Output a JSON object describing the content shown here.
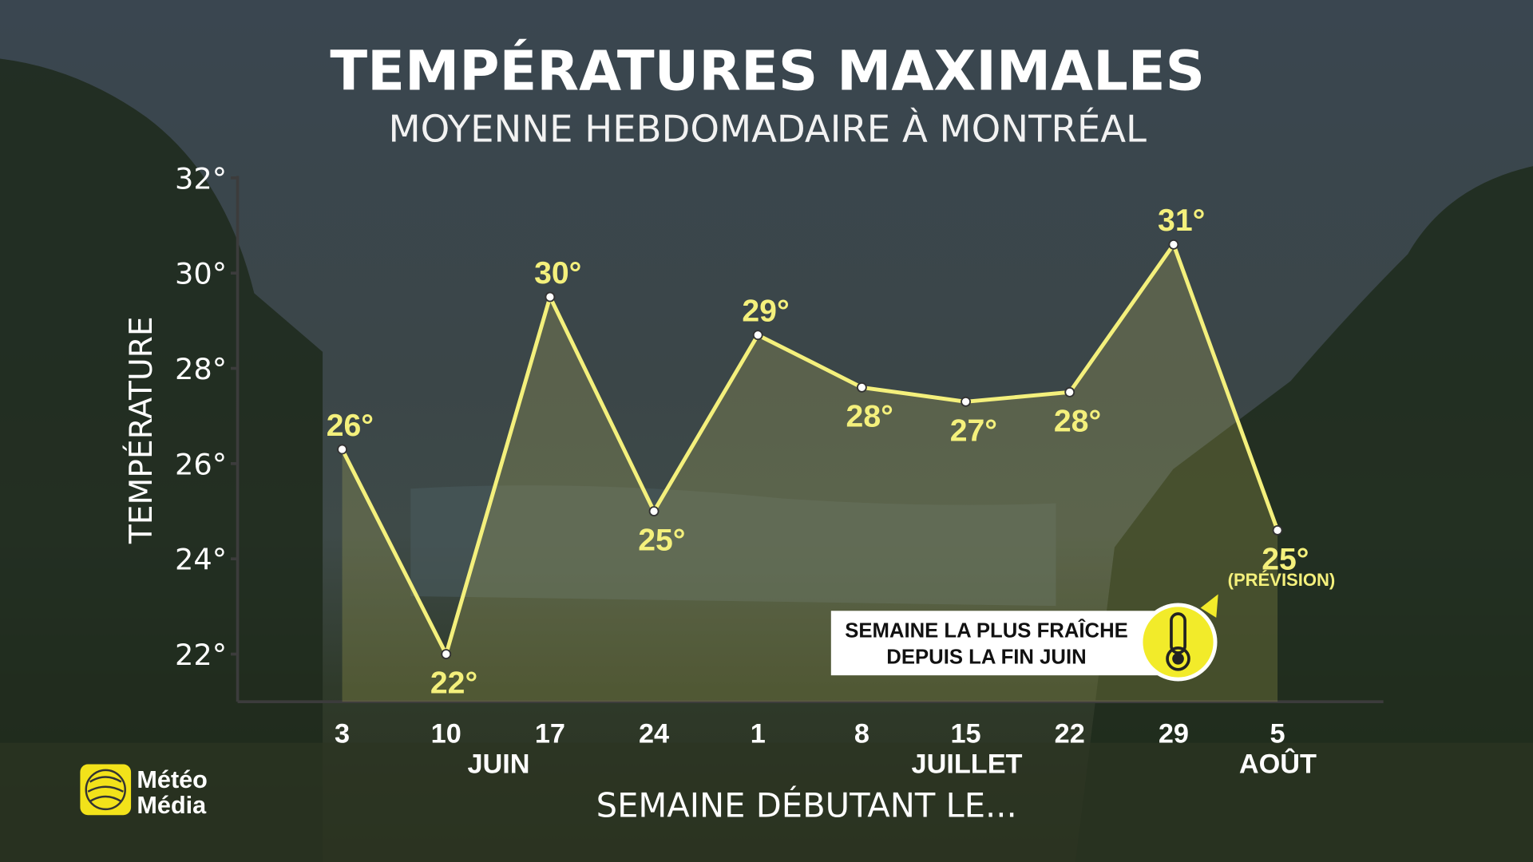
{
  "chart_data": {
    "type": "line",
    "title": "TEMPÉRATURES MAXIMALES",
    "subtitle": "MOYENNE HEBDOMADAIRE À MONTRÉAL",
    "y_label": "TEMPÉRATURE",
    "x_label": "SEMAINE DÉBUTANT LE...",
    "categories": [
      "3",
      "10",
      "17",
      "24",
      "1",
      "8",
      "15",
      "22",
      "29",
      "5"
    ],
    "months": [
      "JUIN",
      "JUILLET",
      "AOÛT"
    ],
    "values": [
      26.3,
      22.0,
      29.5,
      25.0,
      28.7,
      27.6,
      27.3,
      27.5,
      30.6,
      24.6
    ],
    "value_labels": [
      "26°",
      "22°",
      "30°",
      "25°",
      "29°",
      "28°",
      "27°",
      "28°",
      "31°",
      "25°"
    ],
    "color": "#f4f07c",
    "ylim": [
      21,
      32
    ],
    "yticks": [
      {
        "value": 22,
        "label": "22°"
      },
      {
        "value": 24,
        "label": "24°"
      },
      {
        "value": 26,
        "label": "26°"
      },
      {
        "value": 28,
        "label": "28°"
      },
      {
        "value": 30,
        "label": "30°"
      },
      {
        "value": 32,
        "label": "32°"
      }
    ],
    "forecast_note": "(PRÉVISION)",
    "callout": [
      "SEMAINE LA PLUS FRAÎCHE",
      "DEPUIS LA FIN JUIN"
    ]
  },
  "logo": [
    "Météo",
    "Média"
  ]
}
